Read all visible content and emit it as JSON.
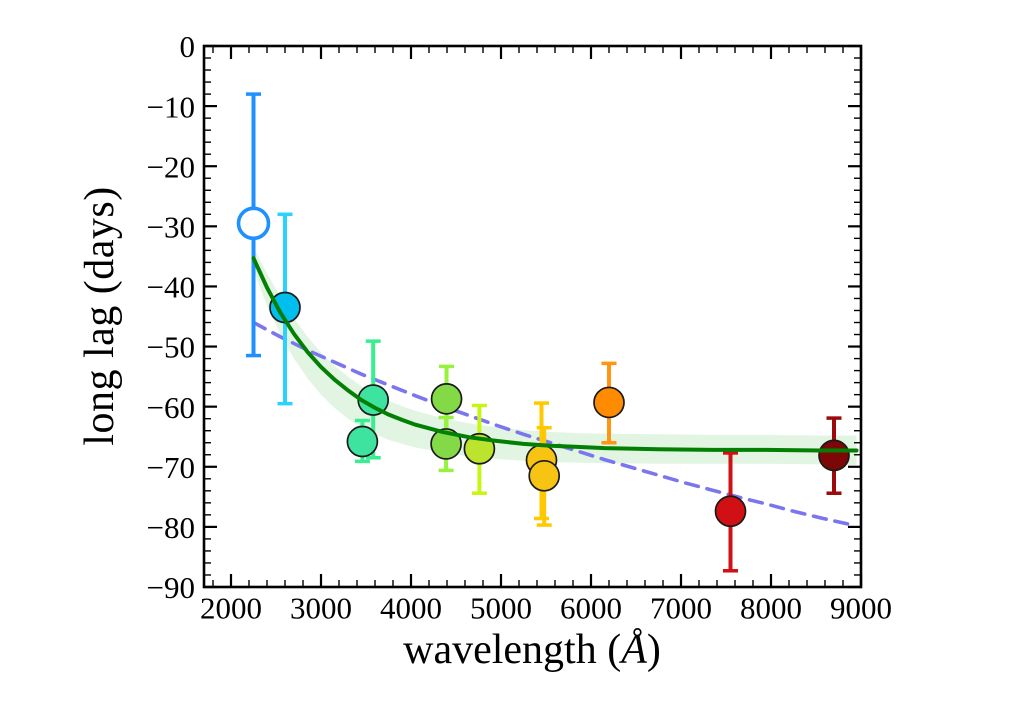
{
  "chart_data": {
    "type": "scatter",
    "title": "",
    "xlabel": {
      "pre": "wavelength (",
      "unit": "Å",
      "post": ")"
    },
    "ylabel": "long lag (days)",
    "x_axis": {
      "min": 1700,
      "max": 9000,
      "major_ticks": [
        2000,
        3000,
        4000,
        5000,
        6000,
        7000,
        8000,
        9000
      ],
      "tick_labels": [
        "2000",
        "3000",
        "4000",
        "5000",
        "6000",
        "7000",
        "8000",
        "9000"
      ],
      "minor_step": 200
    },
    "y_axis": {
      "min": -90,
      "max": 0,
      "major_ticks": [
        0,
        -10,
        -20,
        -30,
        -40,
        -50,
        -60,
        -70,
        -80,
        -90
      ],
      "tick_labels": [
        "0",
        "−10",
        "−20",
        "−30",
        "−40",
        "−50",
        "−60",
        "−70",
        "−80",
        "−90"
      ],
      "minor_step": 2
    },
    "grid": false,
    "legend": false,
    "frame_color": "#000000",
    "points": [
      {
        "wavelength": 2250,
        "lag": -29.5,
        "err_up": 21.5,
        "err_down": 22.0,
        "open": true,
        "color": "#1e90ff",
        "bar_color": "#1e90ff"
      },
      {
        "wavelength": 2600,
        "lag": -43.5,
        "err_up": 15.5,
        "err_down": 16.0,
        "open": false,
        "color": "#00bfef",
        "bar_color": "#29d2ff"
      },
      {
        "wavelength": 3580,
        "lag": -58.9,
        "err_up": 9.8,
        "err_down": 9.6,
        "open": false,
        "color": "#3fe3a0",
        "bar_color": "#38ee90"
      },
      {
        "wavelength": 3460,
        "lag": -65.8,
        "err_up": 3.5,
        "err_down": 3.3,
        "open": false,
        "color": "#3fe3a0",
        "bar_color": "#38ee90"
      },
      {
        "wavelength": 4395,
        "lag": -58.7,
        "err_up": 5.4,
        "err_down": 5.4,
        "open": false,
        "color": "#84d947",
        "bar_color": "#96f23c"
      },
      {
        "wavelength": 4390,
        "lag": -66.2,
        "err_up": 4.4,
        "err_down": 4.4,
        "open": false,
        "color": "#84d947",
        "bar_color": "#96f23c"
      },
      {
        "wavelength": 4760,
        "lag": -67.0,
        "err_up": 7.2,
        "err_down": 7.4,
        "open": false,
        "color": "#bce42e",
        "bar_color": "#c7f514"
      },
      {
        "wavelength": 5450,
        "lag": -68.9,
        "err_up": 9.5,
        "err_down": 9.7,
        "open": false,
        "color": "#f7c413",
        "bar_color": "#ffc800"
      },
      {
        "wavelength": 5480,
        "lag": -71.5,
        "err_up": 8.0,
        "err_down": 8.2,
        "open": false,
        "color": "#f7c413",
        "bar_color": "#ffc800"
      },
      {
        "wavelength": 6200,
        "lag": -59.3,
        "err_up": 6.5,
        "err_down": 6.7,
        "open": false,
        "color": "#ff8c00",
        "bar_color": "#ff9510"
      },
      {
        "wavelength": 7550,
        "lag": -77.4,
        "err_up": 9.7,
        "err_down": 9.9,
        "open": false,
        "color": "#d01014",
        "bar_color": "#d01014"
      },
      {
        "wavelength": 8700,
        "lag": -68.1,
        "err_up": 6.2,
        "err_down": 6.3,
        "open": false,
        "color": "#7d0606",
        "bar_color": "#9b0b0b"
      }
    ],
    "fit_curve": {
      "color": "#038003",
      "x": [
        2250,
        2400,
        2550,
        2700,
        2850,
        3000,
        3150,
        3300,
        3450,
        3600,
        3750,
        3900,
        4050,
        4350,
        4650,
        4950,
        5250,
        5550,
        5850,
        6150,
        6750,
        7350,
        7950,
        8550,
        8950
      ],
      "y": [
        -35.3,
        -40.2,
        -44.4,
        -47.9,
        -50.9,
        -53.4,
        -55.5,
        -57.3,
        -58.9,
        -60.2,
        -61.3,
        -62.2,
        -63.0,
        -64.2,
        -65.1,
        -65.7,
        -66.2,
        -66.5,
        -66.7,
        -66.9,
        -67.1,
        -67.2,
        -67.2,
        -67.3,
        -67.3
      ]
    },
    "fit_band": {
      "color": "rgba(110,205,110,0.20)",
      "x": [
        2250,
        2400,
        2550,
        2700,
        2850,
        3000,
        3150,
        3300,
        3450,
        3600,
        3750,
        3900,
        4050,
        4350,
        4650,
        4950,
        5250,
        5550,
        5850,
        6150,
        6750,
        7350,
        7950,
        8550,
        8950
      ],
      "upper": [
        -33.5,
        -37.8,
        -41.8,
        -45.3,
        -48.4,
        -51.0,
        -53.2,
        -55.0,
        -56.6,
        -57.9,
        -59.0,
        -59.9,
        -60.7,
        -61.9,
        -62.8,
        -63.4,
        -63.9,
        -64.2,
        -64.4,
        -64.5,
        -64.6,
        -64.7,
        -64.7,
        -64.8,
        -64.8
      ],
      "lower": [
        -37.3,
        -43.2,
        -48.0,
        -52.0,
        -55.3,
        -58.0,
        -60.2,
        -62.0,
        -63.4,
        -64.6,
        -65.5,
        -66.2,
        -66.8,
        -67.6,
        -68.3,
        -68.7,
        -69.0,
        -69.2,
        -69.3,
        -69.4,
        -69.5,
        -69.5,
        -69.5,
        -69.6,
        -69.7
      ]
    },
    "dashed_line": {
      "color": "#7b76ee",
      "x": [
        2250,
        2550,
        2850,
        3150,
        3450,
        3750,
        4050,
        4350,
        4650,
        4950,
        5250,
        5550,
        5850,
        6150,
        6450,
        6750,
        7050,
        7350,
        7650,
        7950,
        8250,
        8550,
        8850
      ],
      "y": [
        -46.0,
        -48.4,
        -50.6,
        -52.6,
        -54.6,
        -56.4,
        -58.2,
        -59.9,
        -61.5,
        -63.1,
        -64.6,
        -66.0,
        -67.4,
        -68.8,
        -70.1,
        -71.4,
        -72.7,
        -73.9,
        -75.1,
        -76.2,
        -77.4,
        -78.5,
        -79.5
      ]
    }
  }
}
